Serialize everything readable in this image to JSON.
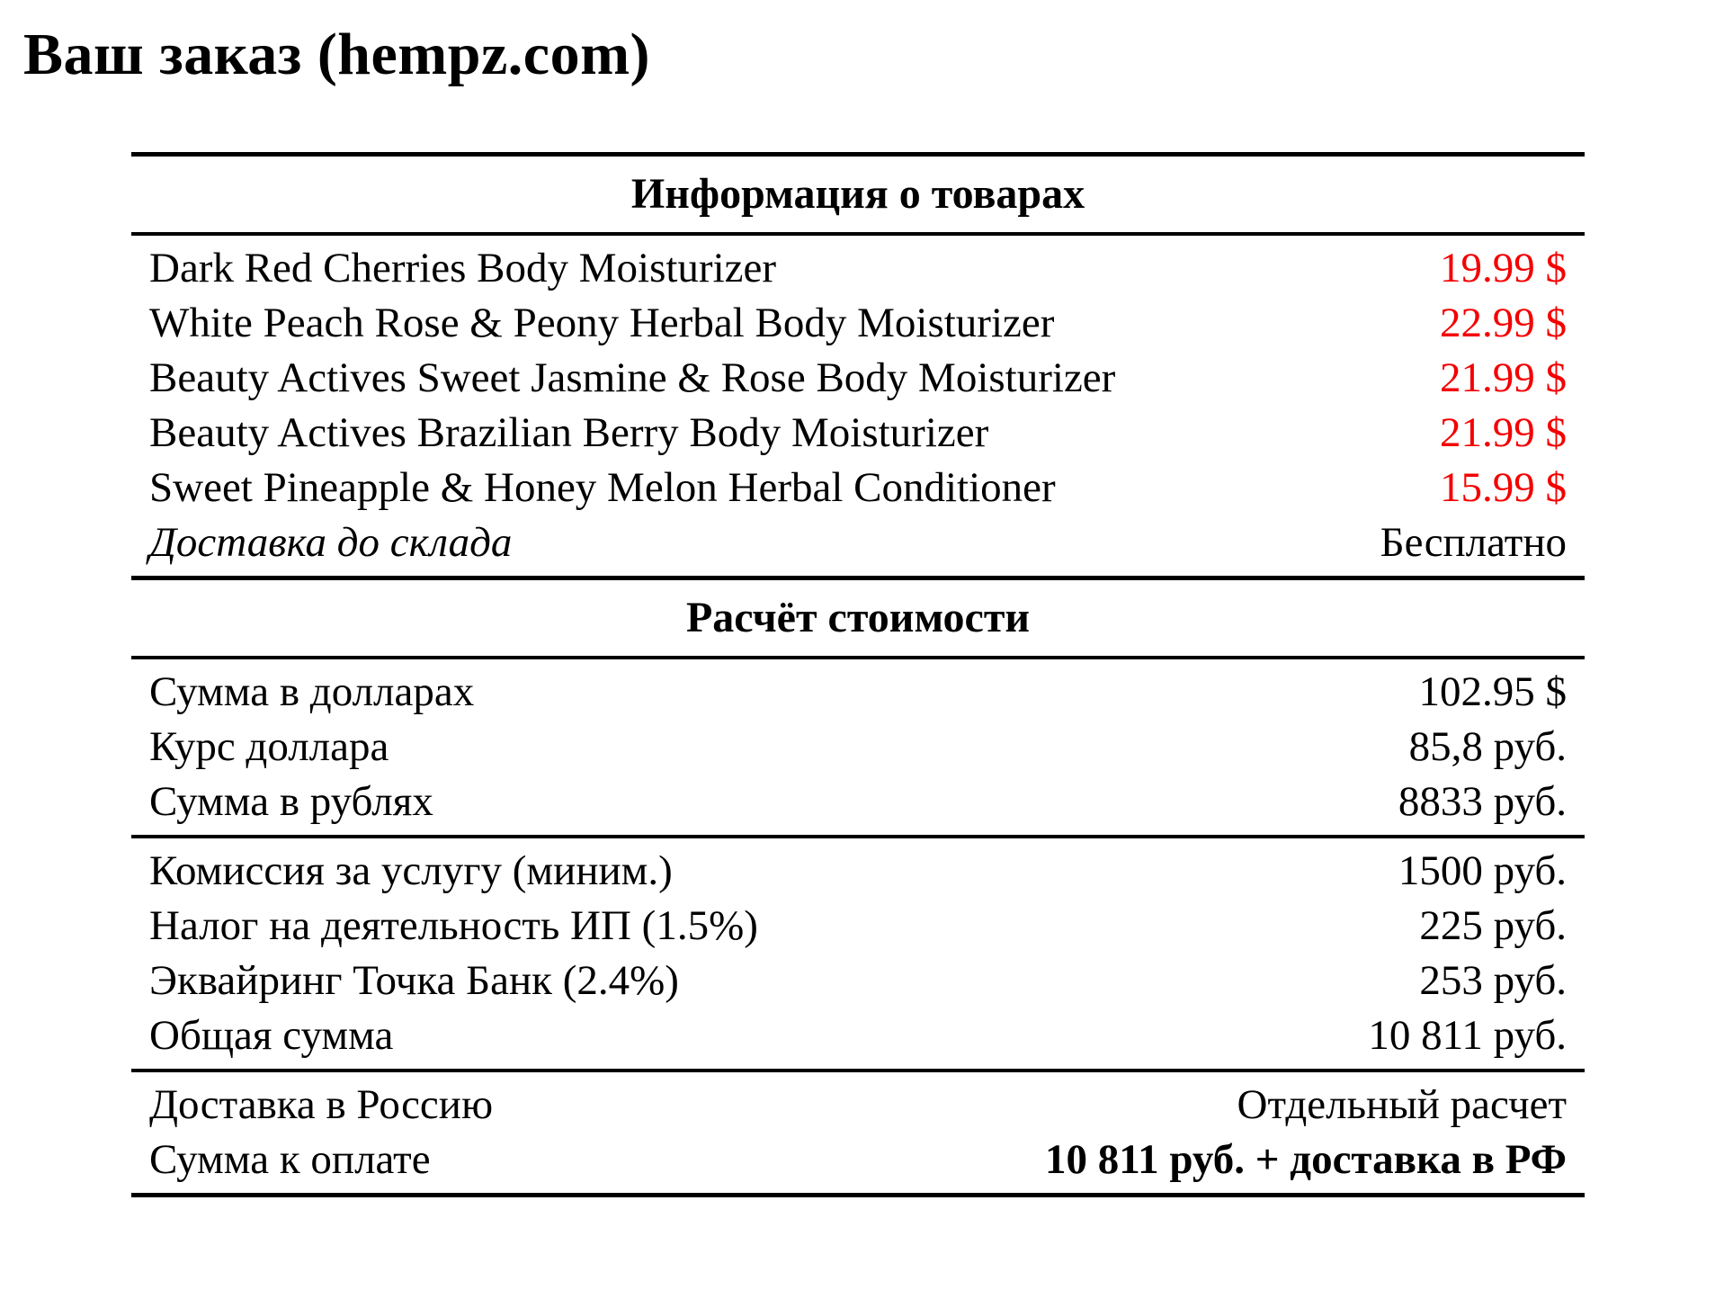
{
  "title": "Ваш заказ (hempz.com)",
  "colors": {
    "price_red": "#f40000",
    "text": "#000000",
    "rule": "#000000"
  },
  "products": {
    "header": "Информация о товарах",
    "rows": [
      {
        "name": "Dark Red Cherries Body Moisturizer",
        "price": "19.99 $"
      },
      {
        "name": "White Peach Rose & Peony Herbal Body Moisturizer",
        "price": "22.99 $"
      },
      {
        "name": "Beauty Actives Sweet Jasmine & Rose Body Moisturizer",
        "price": "21.99 $"
      },
      {
        "name": "Beauty Actives Brazilian Berry Body Moisturizer",
        "price": "21.99 $"
      },
      {
        "name": "Sweet Pineapple & Honey Melon Herbal Conditioner",
        "price": "15.99 $"
      }
    ],
    "shipping": {
      "name": "Доставка до склада",
      "value": "Бесплатно"
    }
  },
  "calculation": {
    "header": "Расчёт стоимости",
    "subtotal_rows": [
      {
        "label": "Сумма в долларах",
        "value": "102.95 $"
      },
      {
        "label": "Курс доллара",
        "value": "85,8 руб."
      },
      {
        "label": "Сумма в рублях",
        "value": "8833 руб."
      }
    ],
    "fee_rows": [
      {
        "label": "Комиссия за услугу (миним.)",
        "value": "1500 руб."
      },
      {
        "label": "Налог на деятельность ИП (1.5%)",
        "value": "225 руб."
      },
      {
        "label": "Эквайринг Точка Банк (2.4%)",
        "value": "253 руб."
      },
      {
        "label": "Общая сумма",
        "value": "10 811 руб."
      }
    ],
    "total_rows": [
      {
        "label": "Доставка в Россию",
        "value": "Отдельный расчет"
      },
      {
        "label": "Сумма к оплате",
        "value": "10 811 руб. + доставка в РФ"
      }
    ]
  }
}
